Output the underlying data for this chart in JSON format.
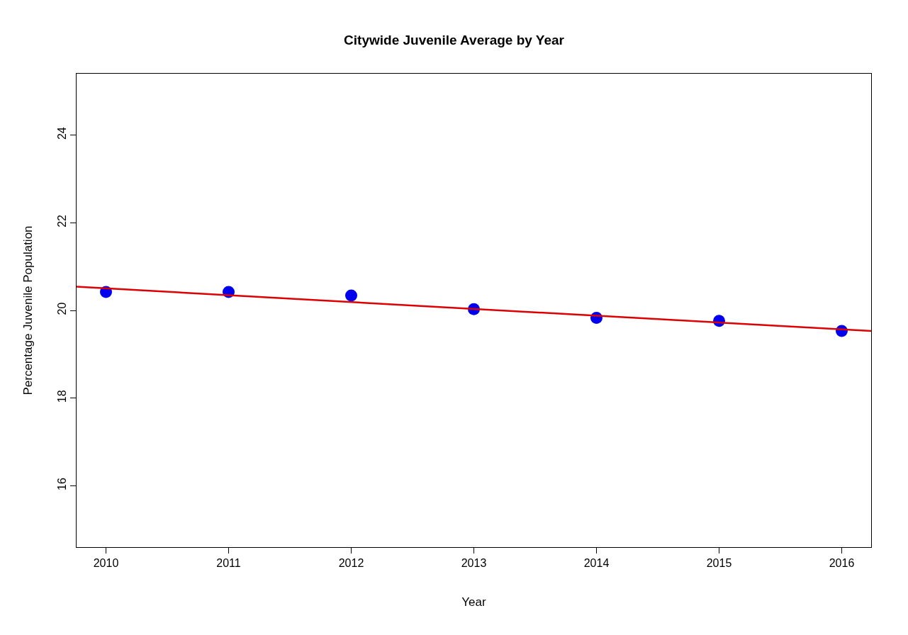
{
  "chart_data": {
    "type": "scatter",
    "title": "Citywide Juvenile Average by Year",
    "xlabel": "Year",
    "ylabel": "Percentage Juvenile Population",
    "x": [
      2010,
      2011,
      2012,
      2013,
      2014,
      2015,
      2016
    ],
    "series": [
      {
        "color": "#0000ee",
        "marker": "circle",
        "values": [
          20.42,
          20.42,
          20.34,
          20.03,
          19.83,
          19.76,
          19.53
        ]
      },
      {
        "type": "line",
        "color": "#dd0000",
        "line_style": "solid",
        "x": [
          2009.76,
          2016.24
        ],
        "values": [
          20.54,
          19.53
        ]
      }
    ],
    "xlim": [
      2009.76,
      2016.24
    ],
    "xticks": [
      2010,
      2011,
      2012,
      2013,
      2014,
      2015,
      2016
    ],
    "ylim": [
      14.6,
      25.4
    ],
    "yticks": [
      16,
      18,
      20,
      22,
      24
    ]
  }
}
